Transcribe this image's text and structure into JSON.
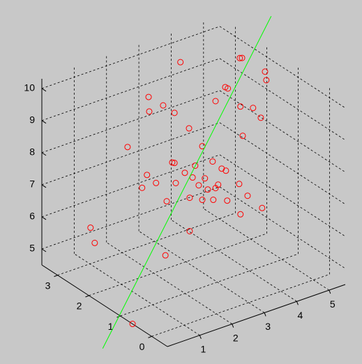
{
  "chart_data": {
    "type": "scatter3d",
    "xlim": [
      -0.5,
      3.5
    ],
    "ylim": [
      0,
      5.5
    ],
    "zlim": [
      4.5,
      10.3
    ],
    "xticks": [
      0,
      1,
      2,
      3
    ],
    "yticks": [
      1,
      2,
      3,
      4,
      5
    ],
    "zticks": [
      5,
      6,
      7,
      8,
      9,
      10
    ],
    "grid": true,
    "points": {
      "color": "#ff0000",
      "x": [
        3.0,
        2.5,
        2.5,
        1.5,
        1.5,
        1.5,
        1.5,
        2.5,
        1.5,
        2.5,
        1.5,
        1.5,
        2.5,
        1.5,
        1.5,
        1.5,
        0.5,
        2.5,
        1.5,
        1.5,
        1.5,
        1.5,
        1.5,
        1.5,
        1.5,
        1.5,
        2.5,
        1.5,
        1.5,
        1.5,
        2.5,
        1.5,
        1.5,
        1.5,
        0.5,
        2.5,
        1.5,
        0.5,
        1.5,
        1.5,
        1.5,
        1.5,
        0.5,
        0.5,
        0.5,
        3.0,
        1.5,
        3.0,
        1.5,
        0.61
      ],
      "y": [
        3.8,
        5.15,
        5.22,
        4.96,
        5.0,
        3.73,
        3.81,
        2.33,
        3.43,
        2.78,
        4.2,
        4.59,
        2.35,
        2.16,
        4.83,
        2.61,
        3.3,
        1.68,
        3.02,
        2.09,
        2.16,
        3.34,
        2.8,
        3.62,
        3.75,
        2.48,
        2.28,
        3.1,
        2.72,
        2.2,
        2.56,
        2.91,
        3.51,
        3.43,
        3.19,
        2.13,
        3.19,
        3.45,
        2.63,
        1.92,
        3.02,
        3.36,
        2.82,
        3.9,
        3.23,
        1.02,
        2.63,
        1.15,
        1.88,
        0
      ],
      "z": [
        9.8,
        9.77,
        9.75,
        10.05,
        9.77,
        10.0,
        9.93,
        9.55,
        9.67,
        9.13,
        9.23,
        9.05,
        9.09,
        9.75,
        8.66,
        9.11,
        9.27,
        8.22,
        8.41,
        8.23,
        8.19,
        7.82,
        7.88,
        7.5,
        7.39,
        7.77,
        7.14,
        7.38,
        7.54,
        7.55,
        6.79,
        7.23,
        7.04,
        6.96,
        7.81,
        6.79,
        7.0,
        7.35,
        6.94,
        7.08,
        6.74,
        6.62,
        7.42,
        6.81,
        6.85,
        5.62,
        5.9,
        5.1,
        5.41,
        4.5
      ]
    },
    "line": {
      "color": "#00ff00",
      "x": [
        1.5,
        1.5
      ],
      "y": [
        -0.06,
        5.15
      ],
      "z": [
        3.19,
        11.71
      ]
    }
  }
}
